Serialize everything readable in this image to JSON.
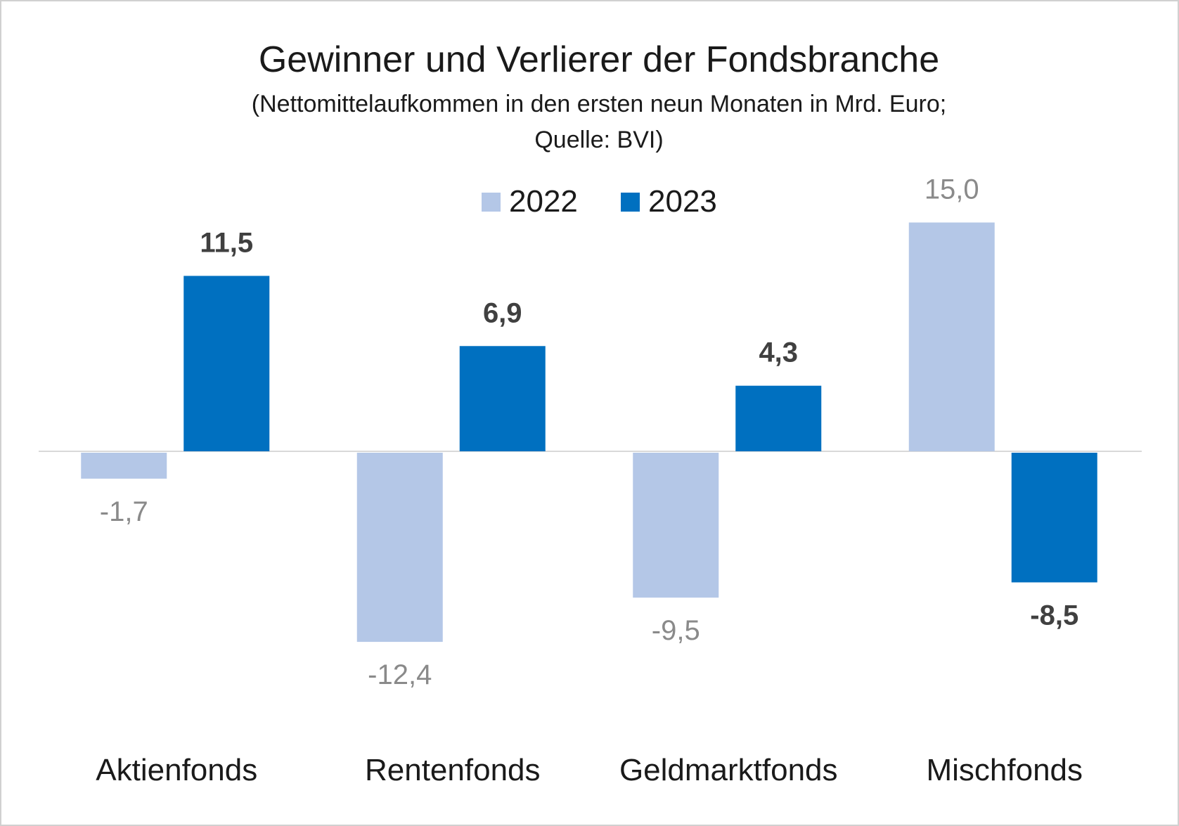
{
  "chart_data": {
    "type": "bar",
    "title": "Gewinner und Verlierer der Fondsbranche",
    "subtitle_line1": "(Nettomittelaufkommen in den ersten neun Monaten in Mrd. Euro;",
    "subtitle_line2": "Quelle: BVI)",
    "categories": [
      "Aktienfonds",
      "Rentenfonds",
      "Geldmarktfonds",
      "Mischfonds"
    ],
    "series": [
      {
        "name": "2022",
        "values": [
          -1.7,
          -12.4,
          -9.5,
          15.0
        ],
        "labels": [
          "-1,7",
          "-12,4",
          "-9,5",
          "15,0"
        ],
        "color": "#b4c7e7"
      },
      {
        "name": "2023",
        "values": [
          11.5,
          6.9,
          4.3,
          -8.5
        ],
        "labels": [
          "11,5",
          "6,9",
          "4,3",
          "-8,5"
        ],
        "color": "#0070c0"
      }
    ],
    "legend_position": "top-center",
    "grid": false,
    "axis_line_color": "#d9d9d9"
  }
}
